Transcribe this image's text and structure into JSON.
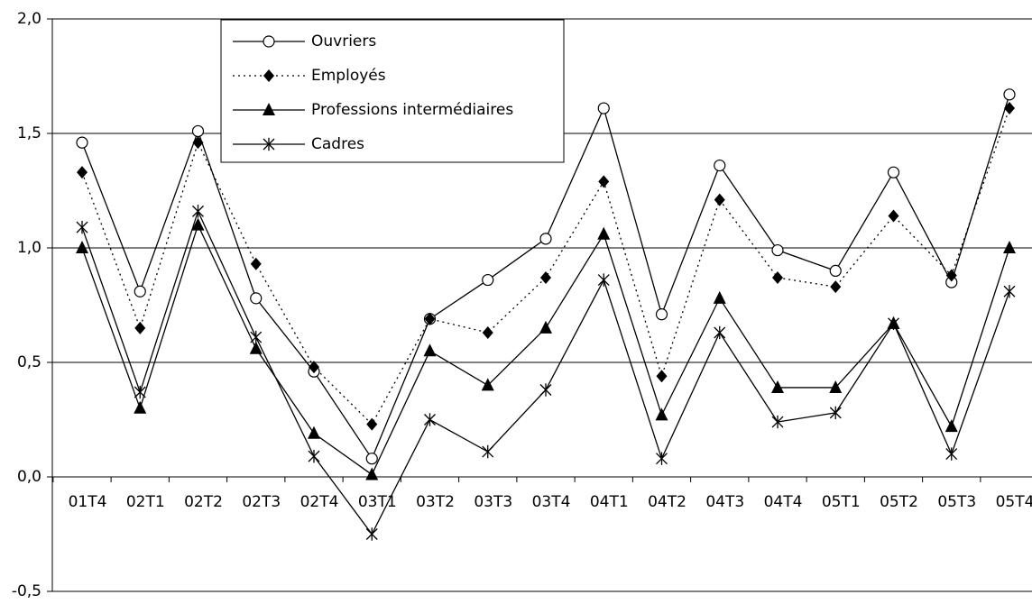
{
  "chart_data": {
    "type": "line",
    "categories": [
      "01T4",
      "02T1",
      "02T2",
      "02T3",
      "02T4",
      "03T1",
      "03T2",
      "03T3",
      "03T4",
      "04T1",
      "04T2",
      "04T3",
      "04T4",
      "05T1",
      "05T2",
      "05T3",
      "05T4"
    ],
    "series": [
      {
        "name": "Ouvriers",
        "color": "#000000",
        "marker": "circle",
        "dash": "solid",
        "values": [
          1.46,
          0.81,
          1.51,
          0.78,
          0.46,
          0.08,
          0.69,
          0.86,
          1.04,
          1.61,
          0.71,
          1.36,
          0.99,
          0.9,
          1.33,
          0.85,
          1.67
        ]
      },
      {
        "name": "Employés",
        "color": "#000000",
        "marker": "diamond",
        "dash": "dotted",
        "values": [
          1.33,
          0.65,
          1.46,
          0.93,
          0.48,
          0.23,
          0.69,
          0.63,
          0.87,
          1.29,
          0.44,
          1.21,
          0.87,
          0.83,
          1.14,
          0.88,
          1.61
        ]
      },
      {
        "name": "Professions intermédiaires",
        "color": "#000000",
        "marker": "triangle",
        "dash": "solid",
        "values": [
          1.0,
          0.3,
          1.1,
          0.56,
          0.19,
          0.01,
          0.55,
          0.4,
          0.65,
          1.06,
          0.27,
          0.78,
          0.39,
          0.39,
          0.67,
          0.22,
          1.0
        ]
      },
      {
        "name": "Cadres",
        "color": "#000000",
        "marker": "asterisk",
        "dash": "solid",
        "values": [
          1.09,
          0.37,
          1.16,
          0.61,
          0.09,
          -0.25,
          0.25,
          0.11,
          0.38,
          0.86,
          0.08,
          0.63,
          0.24,
          0.28,
          0.67,
          0.1,
          0.81
        ]
      }
    ],
    "ylim": [
      -0.5,
      2.0
    ],
    "yticks": [
      {
        "value": -0.5,
        "label": "-0,5"
      },
      {
        "value": 0,
        "label": "0,0"
      },
      {
        "value": 0.5,
        "label": "0,5"
      },
      {
        "value": 1.0,
        "label": "1,0"
      },
      {
        "value": 1.5,
        "label": "1,5"
      },
      {
        "value": 2.0,
        "label": "2,0"
      }
    ],
    "grid": true,
    "legend": "top-left"
  }
}
